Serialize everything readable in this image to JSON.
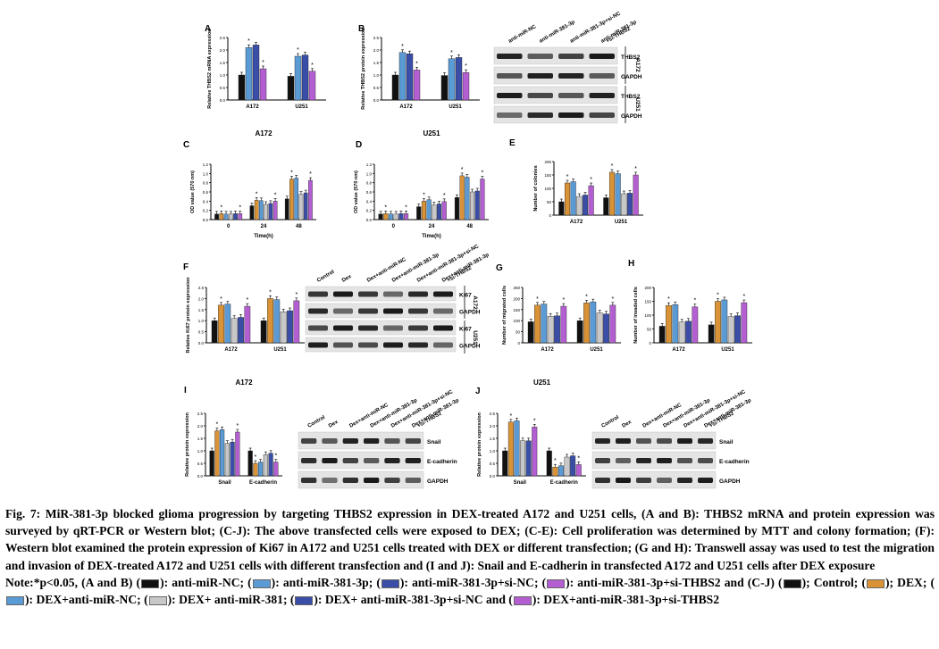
{
  "figure": {
    "panel_labels": {
      "A": "A",
      "B": "B",
      "C": "C",
      "D": "D",
      "E": "E",
      "F": "F",
      "G": "G",
      "H": "H",
      "I": "I",
      "J": "J"
    },
    "group_titles": {
      "c": "A172",
      "d": "U251",
      "i": "A172",
      "j": "U251"
    },
    "colors": {
      "black": "#111111",
      "orange": "#d99336",
      "blue": "#5b9bd5",
      "lightgray": "#c8c8c8",
      "navy": "#3a4ea8",
      "purple": "#b45fd1",
      "grid": "#777777"
    },
    "blot": {
      "b_columns": [
        "anti-miR-NC",
        "anti-miR-381-3p",
        "anti-miR-381-3p+si-NC",
        "anti-miR-381-3p\n+si-THBS2"
      ],
      "b_rows": [
        "THBS2",
        "GAPDH",
        "THBS2",
        "GAPDH"
      ],
      "b_cell_labels": [
        "A172",
        "U251"
      ],
      "fij_columns": [
        "Control",
        "Dex",
        "Dex+anti-miR-NC",
        "Dex+anti-miR-381-3p",
        "Dex+anti-miR-381-3p+si-NC",
        "Dex+anti-miR-381-3p\n+si-THBS2"
      ],
      "f_rows": [
        "Ki67",
        "GAPDH",
        "Ki67",
        "GAPDH"
      ],
      "ij_rows": [
        "Snail",
        "E-cadherin",
        "GAPDH"
      ]
    }
  },
  "chart_data": [
    {
      "panel": "A",
      "type": "bar",
      "ylabel": "Relative THBS2 mRNA expression",
      "ylim": [
        0,
        2.5
      ],
      "yticks": [
        "0.0",
        "0.5",
        "1.0",
        "1.5",
        "2.0",
        "2.5"
      ],
      "categories": [
        "A172",
        "U251"
      ],
      "series": [
        {
          "color": "black",
          "values": [
            1.0,
            0.95
          ]
        },
        {
          "color": "blue",
          "values": [
            2.1,
            1.75
          ]
        },
        {
          "color": "navy",
          "values": [
            2.2,
            1.8
          ]
        },
        {
          "color": "purple",
          "values": [
            1.25,
            1.15
          ]
        }
      ],
      "sig": "*"
    },
    {
      "panel": "B",
      "type": "bar",
      "ylabel": "Relative THBS2 protein expression",
      "ylim": [
        0,
        2.5
      ],
      "yticks": [
        "0.0",
        "0.5",
        "1.0",
        "1.5",
        "2.0",
        "2.5"
      ],
      "categories": [
        "A172",
        "U251"
      ],
      "series": [
        {
          "color": "black",
          "values": [
            1.0,
            0.98
          ]
        },
        {
          "color": "blue",
          "values": [
            1.9,
            1.65
          ]
        },
        {
          "color": "navy",
          "values": [
            1.85,
            1.7
          ]
        },
        {
          "color": "purple",
          "values": [
            1.2,
            1.1
          ]
        }
      ],
      "sig": "*"
    },
    {
      "panel": "C",
      "type": "bar",
      "title": "A172",
      "ylabel": "OD value (570 nm)",
      "xlabel": "Time(h)",
      "ylim": [
        0,
        1.2
      ],
      "yticks": [
        "0.0",
        "0.2",
        "0.4",
        "0.6",
        "0.8",
        "1.0",
        "1.2"
      ],
      "categories": [
        "0",
        "24",
        "48"
      ],
      "series": [
        {
          "color": "black",
          "values": [
            0.12,
            0.3,
            0.45
          ]
        },
        {
          "color": "orange",
          "values": [
            0.13,
            0.42,
            0.88
          ]
        },
        {
          "color": "blue",
          "values": [
            0.12,
            0.41,
            0.9
          ]
        },
        {
          "color": "lightgray",
          "values": [
            0.12,
            0.33,
            0.55
          ]
        },
        {
          "color": "navy",
          "values": [
            0.13,
            0.35,
            0.58
          ]
        },
        {
          "color": "purple",
          "values": [
            0.13,
            0.4,
            0.85
          ]
        }
      ],
      "sig": "*"
    },
    {
      "panel": "D",
      "type": "bar",
      "title": "U251",
      "ylabel": "OD value (570 nm)",
      "xlabel": "Time(h)",
      "ylim": [
        0,
        1.2
      ],
      "yticks": [
        "0.0",
        "0.2",
        "0.4",
        "0.6",
        "0.8",
        "1.0",
        "1.2"
      ],
      "categories": [
        "0",
        "24",
        "48"
      ],
      "series": [
        {
          "color": "black",
          "values": [
            0.12,
            0.28,
            0.48
          ]
        },
        {
          "color": "orange",
          "values": [
            0.13,
            0.4,
            0.95
          ]
        },
        {
          "color": "blue",
          "values": [
            0.12,
            0.43,
            0.92
          ]
        },
        {
          "color": "lightgray",
          "values": [
            0.12,
            0.32,
            0.6
          ]
        },
        {
          "color": "navy",
          "values": [
            0.13,
            0.34,
            0.62
          ]
        },
        {
          "color": "purple",
          "values": [
            0.13,
            0.39,
            0.88
          ]
        }
      ],
      "sig": "*"
    },
    {
      "panel": "E",
      "type": "bar",
      "ylabel": "Number of colonies",
      "ylim": [
        0,
        200
      ],
      "yticks": [
        "0",
        "50",
        "100",
        "150",
        "200"
      ],
      "categories": [
        "A172",
        "U251"
      ],
      "series": [
        {
          "color": "black",
          "values": [
            50,
            65
          ]
        },
        {
          "color": "orange",
          "values": [
            120,
            160
          ]
        },
        {
          "color": "blue",
          "values": [
            125,
            155
          ]
        },
        {
          "color": "lightgray",
          "values": [
            70,
            80
          ]
        },
        {
          "color": "navy",
          "values": [
            75,
            82
          ]
        },
        {
          "color": "purple",
          "values": [
            110,
            150
          ]
        }
      ],
      "sig": "*"
    },
    {
      "panel": "F",
      "type": "bar",
      "ylabel": "Relative Ki67 protein expression",
      "ylim": [
        0,
        2.5
      ],
      "yticks": [
        "0.0",
        "0.5",
        "1.0",
        "1.5",
        "2.0",
        "2.5"
      ],
      "categories": [
        "A172",
        "U251"
      ],
      "series": [
        {
          "color": "black",
          "values": [
            1.0,
            1.0
          ]
        },
        {
          "color": "orange",
          "values": [
            1.7,
            2.0
          ]
        },
        {
          "color": "blue",
          "values": [
            1.75,
            1.95
          ]
        },
        {
          "color": "lightgray",
          "values": [
            1.1,
            1.4
          ]
        },
        {
          "color": "navy",
          "values": [
            1.15,
            1.45
          ]
        },
        {
          "color": "purple",
          "values": [
            1.65,
            1.9
          ]
        }
      ],
      "sig": "*"
    },
    {
      "panel": "G",
      "type": "bar",
      "ylabel": "Number of migrated cells",
      "ylim": [
        0,
        250
      ],
      "yticks": [
        "0",
        "50",
        "100",
        "150",
        "200",
        "250"
      ],
      "categories": [
        "A172",
        "U251"
      ],
      "series": [
        {
          "color": "black",
          "values": [
            95,
            100
          ]
        },
        {
          "color": "orange",
          "values": [
            170,
            180
          ]
        },
        {
          "color": "blue",
          "values": [
            175,
            185
          ]
        },
        {
          "color": "lightgray",
          "values": [
            120,
            135
          ]
        },
        {
          "color": "navy",
          "values": [
            122,
            130
          ]
        },
        {
          "color": "purple",
          "values": [
            165,
            170
          ]
        }
      ],
      "sig": "*"
    },
    {
      "panel": "H",
      "type": "bar",
      "ylabel": "Number of invaded cells",
      "ylim": [
        0,
        200
      ],
      "yticks": [
        "0",
        "50",
        "100",
        "150",
        "200"
      ],
      "categories": [
        "A172",
        "U251"
      ],
      "series": [
        {
          "color": "black",
          "values": [
            60,
            65
          ]
        },
        {
          "color": "orange",
          "values": [
            135,
            150
          ]
        },
        {
          "color": "blue",
          "values": [
            138,
            155
          ]
        },
        {
          "color": "lightgray",
          "values": [
            75,
            95
          ]
        },
        {
          "color": "navy",
          "values": [
            78,
            98
          ]
        },
        {
          "color": "purple",
          "values": [
            130,
            145
          ]
        }
      ],
      "sig": "*"
    },
    {
      "panel": "I",
      "type": "bar",
      "title": "A172",
      "ylabel": "Relative protein expression",
      "ylim": [
        0,
        2.5
      ],
      "yticks": [
        "0.0",
        "0.5",
        "1.0",
        "1.5",
        "2.0",
        "2.5"
      ],
      "categories": [
        "Snail",
        "E-cadherin"
      ],
      "series": [
        {
          "color": "black",
          "values": [
            1.0,
            1.0
          ]
        },
        {
          "color": "orange",
          "values": [
            1.8,
            0.5
          ]
        },
        {
          "color": "blue",
          "values": [
            1.85,
            0.55
          ]
        },
        {
          "color": "lightgray",
          "values": [
            1.3,
            0.85
          ]
        },
        {
          "color": "navy",
          "values": [
            1.35,
            0.9
          ]
        },
        {
          "color": "purple",
          "values": [
            1.75,
            0.55
          ]
        }
      ],
      "sig": "*"
    },
    {
      "panel": "J",
      "type": "bar",
      "title": "U251",
      "ylabel": "Relative protein expression",
      "ylim": [
        0,
        2.5
      ],
      "yticks": [
        "0.0",
        "0.5",
        "1.0",
        "1.5",
        "2.0",
        "2.5"
      ],
      "categories": [
        "Snail",
        "E-cadherin"
      ],
      "series": [
        {
          "color": "black",
          "values": [
            1.0,
            1.0
          ]
        },
        {
          "color": "orange",
          "values": [
            2.15,
            0.35
          ]
        },
        {
          "color": "blue",
          "values": [
            2.2,
            0.4
          ]
        },
        {
          "color": "lightgray",
          "values": [
            1.4,
            0.75
          ]
        },
        {
          "color": "navy",
          "values": [
            1.4,
            0.8
          ]
        },
        {
          "color": "purple",
          "values": [
            1.95,
            0.45
          ]
        }
      ],
      "sig": "*"
    }
  ],
  "caption": {
    "p1": "Fig. 7: MiR-381-3p blocked glioma progression by targeting THBS2 expression in DEX-treated A172 and U251 cells, (A and B): THBS2 mRNA and protein expression was surveyed by qRT-PCR or Western blot; (C-J): The above transfected cells were exposed to DEX; (C-E): Cell proliferation was determined by MTT and colony formation; (F): Western blot examined the protein expression of Ki67 in A172 and U251 cells treated with DEX or different transfection; (G and H): Transwell assay was used to test the migration and invasion of DEX-treated A172 and U251 cells with different transfection and (I and J): Snail and E-cadherin in transfected A172 and U251 cells after DEX exposure",
    "note_start": "Note:*p<0.05, (A and B) (",
    "n1": "): anti-miR-NC; (",
    "n2": "): anti-miR-381-3p; (",
    "n3": "): anti-miR-381-3p+si-NC; (",
    "n4": "): anti-miR-381-3p+si-THBS2 and (C-J) (",
    "n5": "); Control; (",
    "n6": "); DEX; (",
    "n7": "): DEX+anti-miR-NC; (",
    "n8": "): DEX+ anti-miR-381; (",
    "n9": "): DEX+ anti-miR-381-3p+si-NC and (",
    "n10": "): DEX+anti-miR-381-3p+si-THBS2"
  }
}
